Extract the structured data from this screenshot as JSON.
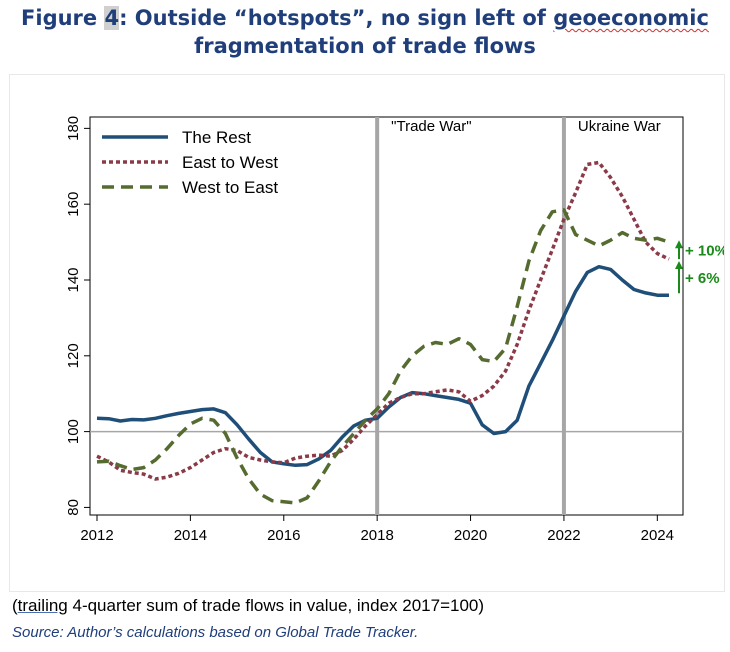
{
  "title": {
    "line1_pre": "Figure ",
    "line1_num": "4",
    "line1_mid": ": Outside “hotspots”, no sign left of ",
    "line1_word": "geoeconomic",
    "line2": "fragmentation of trade flows"
  },
  "caption": {
    "open_paren": "(",
    "underlined": "trailing",
    "rest": " 4-quarter sum of trade flows in value, index 2017=100)"
  },
  "source": "Source: Author’s calculations based on Global Trade Tracker.",
  "chart_data": {
    "type": "line",
    "ylim": [
      78,
      183
    ],
    "xlim": [
      2011.85,
      2024.55
    ],
    "yticks": [
      80,
      100,
      120,
      140,
      160,
      180
    ],
    "xticks": [
      2012,
      2014,
      2016,
      2018,
      2020,
      2022,
      2024
    ],
    "reference_line": 100,
    "vlines": [
      {
        "x": 2018,
        "label": "\"Trade War\""
      },
      {
        "x": 2022,
        "label": "Ukraine War"
      }
    ],
    "legend_position": "top-left",
    "colors": {
      "rest": "#1f4e79",
      "e2w": "#8b3a48",
      "w2e": "#556b2f",
      "annot": "#1a8a1a",
      "vline": "#a6a6a6",
      "refline": "#a6a6a6"
    },
    "series": [
      {
        "name": "The Rest",
        "style": "solid",
        "x": [
          2012.0,
          2012.25,
          2012.5,
          2012.75,
          2013.0,
          2013.25,
          2013.5,
          2013.75,
          2014.0,
          2014.25,
          2014.5,
          2014.75,
          2015.0,
          2015.25,
          2015.5,
          2015.75,
          2016.0,
          2016.25,
          2016.5,
          2016.75,
          2017.0,
          2017.25,
          2017.5,
          2017.75,
          2018.0,
          2018.25,
          2018.5,
          2018.75,
          2019.0,
          2019.25,
          2019.5,
          2019.75,
          2020.0,
          2020.25,
          2020.5,
          2020.75,
          2021.0,
          2021.25,
          2021.5,
          2021.75,
          2022.0,
          2022.25,
          2022.5,
          2022.75,
          2023.0,
          2023.25,
          2023.5,
          2023.75,
          2024.0,
          2024.25
        ],
        "values": [
          103.5,
          103.4,
          102.8,
          103.2,
          103.1,
          103.5,
          104.2,
          104.8,
          105.3,
          105.8,
          106.0,
          105.0,
          101.8,
          98.0,
          94.5,
          92.0,
          91.5,
          91.1,
          91.3,
          92.8,
          95.0,
          98.5,
          101.5,
          103.0,
          103.5,
          106.5,
          109.0,
          110.3,
          110.0,
          109.5,
          109.0,
          108.5,
          107.5,
          101.8,
          99.5,
          100.0,
          103.0,
          112.0,
          118.0,
          124.0,
          130.5,
          137.0,
          142.0,
          143.5,
          142.8,
          140.0,
          137.5,
          136.6,
          136.0,
          136.0
        ]
      },
      {
        "name": "East to West",
        "style": "dotted",
        "x": [
          2012.0,
          2012.25,
          2012.5,
          2012.75,
          2013.0,
          2013.25,
          2013.5,
          2013.75,
          2014.0,
          2014.25,
          2014.5,
          2014.75,
          2015.0,
          2015.25,
          2015.5,
          2015.75,
          2016.0,
          2016.25,
          2016.5,
          2016.75,
          2017.0,
          2017.25,
          2017.5,
          2017.75,
          2018.0,
          2018.25,
          2018.5,
          2018.75,
          2019.0,
          2019.25,
          2019.5,
          2019.75,
          2020.0,
          2020.25,
          2020.5,
          2020.75,
          2021.0,
          2021.25,
          2021.5,
          2021.75,
          2022.0,
          2022.25,
          2022.5,
          2022.75,
          2023.0,
          2023.25,
          2023.5,
          2023.75,
          2024.0,
          2024.25
        ],
        "values": [
          93.5,
          92.0,
          89.8,
          89.2,
          88.8,
          87.5,
          88.0,
          89.0,
          90.5,
          92.5,
          94.5,
          95.5,
          95.0,
          93.2,
          92.5,
          92.0,
          91.8,
          93.0,
          93.5,
          93.8,
          93.5,
          95.0,
          98.0,
          101.5,
          104.5,
          107.5,
          109.0,
          110.0,
          110.0,
          110.5,
          111.0,
          110.5,
          108.0,
          109.5,
          112.0,
          116.0,
          123.0,
          132.0,
          140.0,
          148.0,
          156.0,
          163.0,
          170.5,
          171.0,
          167.0,
          162.0,
          156.0,
          150.0,
          147.0,
          145.5
        ]
      },
      {
        "name": "West to East",
        "style": "dashed",
        "x": [
          2012.0,
          2012.25,
          2012.5,
          2012.75,
          2013.0,
          2013.25,
          2013.5,
          2013.75,
          2014.0,
          2014.25,
          2014.5,
          2014.75,
          2015.0,
          2015.25,
          2015.5,
          2015.75,
          2016.0,
          2016.25,
          2016.5,
          2016.75,
          2017.0,
          2017.25,
          2017.5,
          2017.75,
          2018.0,
          2018.25,
          2018.5,
          2018.75,
          2019.0,
          2019.25,
          2019.5,
          2019.75,
          2020.0,
          2020.25,
          2020.5,
          2020.75,
          2021.0,
          2021.25,
          2021.5,
          2021.75,
          2022.0,
          2022.25,
          2022.5,
          2022.75,
          2023.0,
          2023.25,
          2023.5,
          2023.75,
          2024.0,
          2024.25
        ],
        "values": [
          92.0,
          92.2,
          91.0,
          90.0,
          90.5,
          92.5,
          95.5,
          99.0,
          102.0,
          103.5,
          103.0,
          99.5,
          93.0,
          87.5,
          83.5,
          81.8,
          81.5,
          81.2,
          82.5,
          87.0,
          92.0,
          96.0,
          99.5,
          103.0,
          106.0,
          110.0,
          116.0,
          120.0,
          122.5,
          123.5,
          123.0,
          124.5,
          123.0,
          119.0,
          118.5,
          122.0,
          133.0,
          145.0,
          153.0,
          158.0,
          158.5,
          152.0,
          150.5,
          149.0,
          150.5,
          152.5,
          151.0,
          150.5,
          151.0,
          150.0
        ]
      }
    ],
    "annotations": [
      {
        "text": "+ 10%",
        "x_from": 2024.25,
        "y_from": 145.5,
        "y_to": 150.5
      },
      {
        "text": "+ 6%",
        "x_from": 2024.25,
        "y_from": 136.5,
        "y_to": 145.0
      }
    ]
  }
}
